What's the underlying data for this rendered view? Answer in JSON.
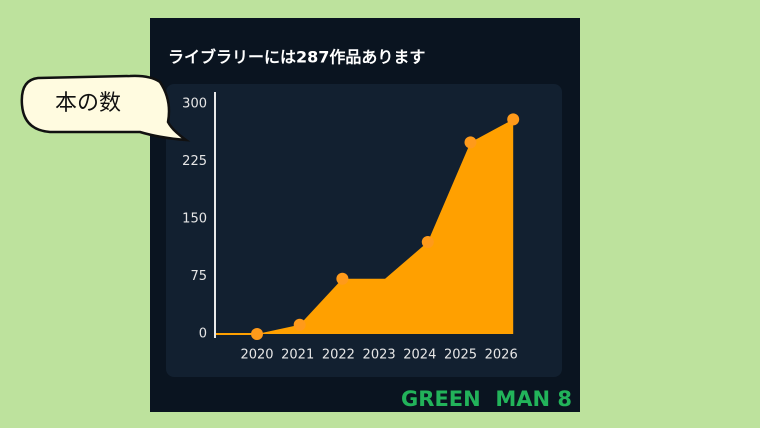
{
  "chart_data": {
    "type": "area",
    "title": "ライブラリーには287作品あります",
    "categories": [
      "2020",
      "2021",
      "2022",
      "2023",
      "2024",
      "2025",
      "2026"
    ],
    "values": [
      0,
      12,
      72,
      72,
      120,
      250,
      280
    ],
    "markers": [
      true,
      true,
      true,
      false,
      true,
      true,
      true
    ],
    "color": "#ffa000",
    "marker_color": "#ff9a1a",
    "ylim": [
      0,
      300
    ],
    "yticks": [
      0,
      75,
      150,
      225,
      300
    ],
    "grid": false
  },
  "callout": "本の数",
  "watermark": "GREEN  MAN 8"
}
